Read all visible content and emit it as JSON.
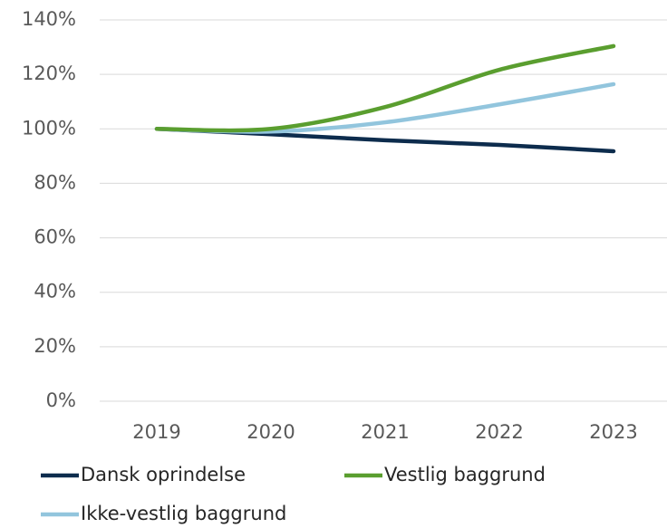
{
  "chart_data": {
    "type": "line",
    "categories": [
      "2019",
      "2020",
      "2021",
      "2022",
      "2023"
    ],
    "series": [
      {
        "name": "Dansk oprindelse",
        "color": "#0d2c4d",
        "values": [
          100,
          98,
          95.8,
          94.1,
          91.8
        ]
      },
      {
        "name": "Vestlig baggrund",
        "color": "#5a9e2f",
        "values": [
          100,
          100,
          108,
          121.7,
          130.4
        ]
      },
      {
        "name": "Ikke-vestlig baggrund",
        "color": "#92c5dd",
        "values": [
          100,
          99,
          102.4,
          109,
          116.4
        ]
      }
    ],
    "ylim": [
      0,
      140
    ],
    "yticks": [
      {
        "value": 0,
        "label": "0%"
      },
      {
        "value": 20,
        "label": "20%"
      },
      {
        "value": 40,
        "label": "40%"
      },
      {
        "value": 60,
        "label": "60%"
      },
      {
        "value": 80,
        "label": "80%"
      },
      {
        "value": 100,
        "label": "100%"
      },
      {
        "value": 120,
        "label": "120%"
      },
      {
        "value": 140,
        "label": "140%"
      }
    ],
    "grid": true
  }
}
